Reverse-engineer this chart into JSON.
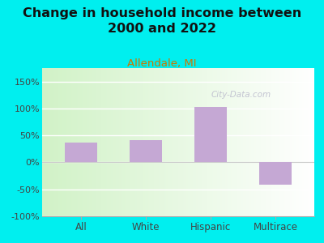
{
  "title": "Change in household income between\n2000 and 2022",
  "subtitle": "Allendale, MI",
  "categories": [
    "All",
    "White",
    "Hispanic",
    "Multirace"
  ],
  "values": [
    37,
    42,
    103,
    -42
  ],
  "bar_color": "#c5a8d4",
  "title_fontsize": 11.5,
  "subtitle_fontsize": 9.5,
  "subtitle_color": "#cc7700",
  "tick_label_color": "#444444",
  "background_outer": "#00efef",
  "ylim": [
    -100,
    175
  ],
  "yticks": [
    -100,
    -50,
    0,
    50,
    100,
    150
  ],
  "ytick_labels": [
    "-100%",
    "-50%",
    "0%",
    "50%",
    "100%",
    "150%"
  ],
  "watermark": "City-Data.com",
  "watermark_color": "#bbbbcc",
  "grid_color": "#cccccc"
}
